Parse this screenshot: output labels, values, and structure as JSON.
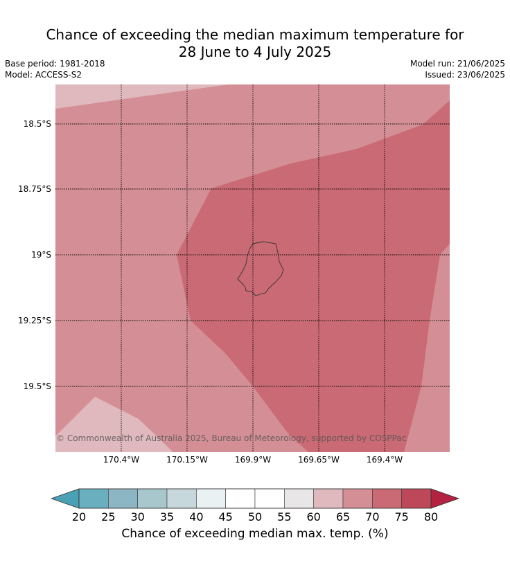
{
  "title": {
    "line1": "Chance of exceeding the median maximum temperature for",
    "line2": "28 June to 4 July 2025"
  },
  "meta": {
    "base_period": "Base period: 1981-2018",
    "model": "Model: ACCESS-S2",
    "model_run": "Model run: 21/06/2025",
    "issued": "Issued: 23/06/2025"
  },
  "map": {
    "lat_labels": [
      "18.5°S",
      "18.75°S",
      "19°S",
      "19.25°S",
      "19.5°S"
    ],
    "lon_labels": [
      "170.4°W",
      "170.15°W",
      "169.9°W",
      "169.65°W",
      "169.4°W"
    ],
    "copyright": "© Commonwealth of Australia 2025, Bureau of Meteorology, supported by COSPPac",
    "island_icon": "island-outline-icon"
  },
  "colorbar": {
    "ticks": [
      "20",
      "25",
      "30",
      "35",
      "40",
      "45",
      "50",
      "55",
      "60",
      "65",
      "70",
      "75",
      "80"
    ],
    "colors": [
      "#6aafbf",
      "#8cb6c3",
      "#a8c7cc",
      "#c7d8dc",
      "#e9f1f2",
      "#ffffff",
      "#ffffff",
      "#e8e6e6",
      "#e0b9be",
      "#d48f96",
      "#c96a74",
      "#bd4859"
    ],
    "low_extend_color": "#4aa0b4",
    "high_extend_color": "#b32240",
    "label": "Chance of exceeding median max. temp. (%)"
  },
  "fill_colors": {
    "band_60_65": "#e0b9be",
    "band_65_70": "#d48f96",
    "band_70_75": "#c96a74"
  }
}
